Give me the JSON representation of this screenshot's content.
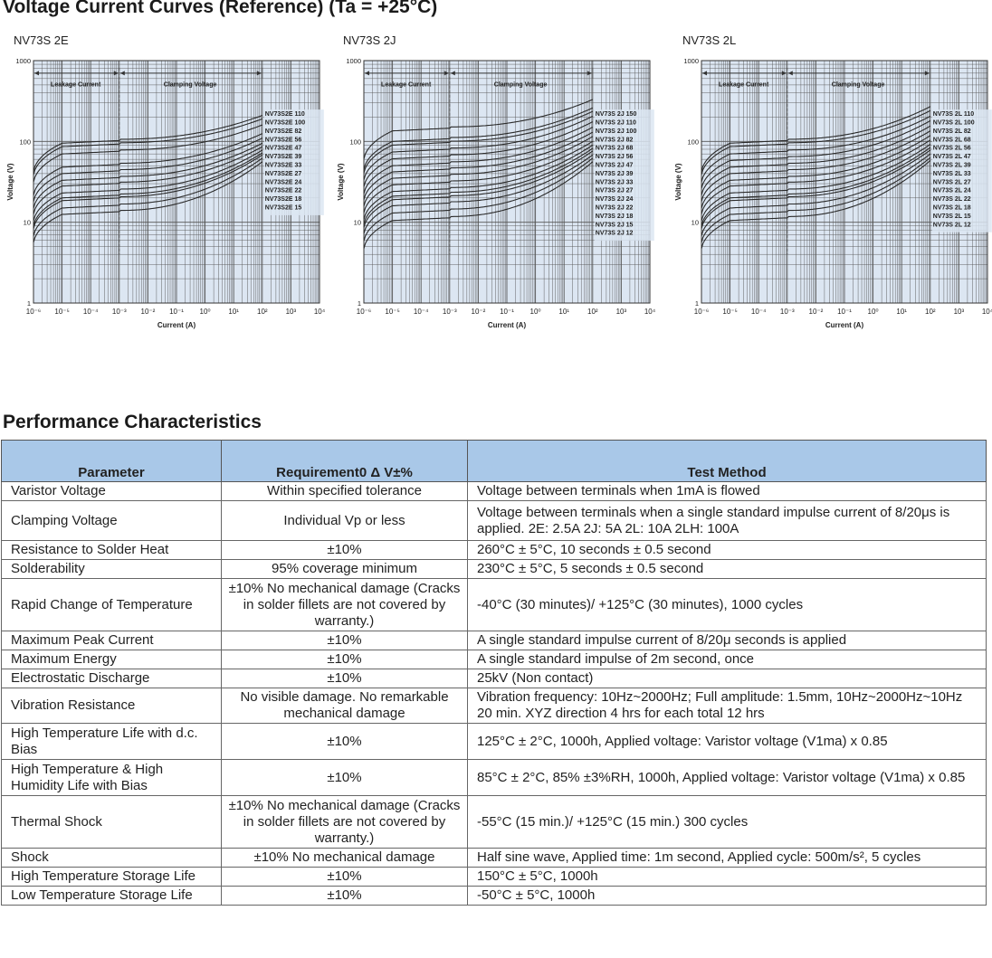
{
  "section1_title": "Voltage Current Curves (Reference) (Ta = +25°C)",
  "section2_title": "Performance Characteristics",
  "colors": {
    "plot_bg": "#dce6f2",
    "header_bg": "#a9c8e8",
    "curve": "#2a2a2a",
    "grid": "#555555"
  },
  "chart_data": [
    {
      "type": "line",
      "title": "NV73S 2E",
      "xlabel": "Current (A)",
      "ylabel": "Voltage (V)",
      "xscale": "log",
      "yscale": "log",
      "xlim": [
        1e-06,
        10000
      ],
      "ylim": [
        1,
        1000
      ],
      "x_ticks": [
        "10⁻⁶",
        "10⁻⁵",
        "10⁻⁴",
        "10⁻³",
        "10⁻²",
        "10⁻¹",
        "10⁰",
        "10¹",
        "10²",
        "10³",
        "10⁴"
      ],
      "y_ticks": [
        "1",
        "10",
        "100",
        "1000"
      ],
      "regions": [
        "Leakage Current",
        "Clamping Voltage"
      ],
      "legend_position": "right",
      "series": [
        {
          "name": "NV73S2E 110",
          "plateau": 95,
          "clamp": 210
        },
        {
          "name": "NV73S2E 100",
          "plateau": 86,
          "clamp": 190
        },
        {
          "name": "NV73S2E 82",
          "plateau": 70,
          "clamp": 160
        },
        {
          "name": "NV73S2E 56",
          "plateau": 48,
          "clamp": 125
        },
        {
          "name": "NV73S2E 47",
          "plateau": 40,
          "clamp": 110
        },
        {
          "name": "NV73S2E 39",
          "plateau": 33,
          "clamp": 95
        },
        {
          "name": "NV73S2E 33",
          "plateau": 28,
          "clamp": 86
        },
        {
          "name": "NV73S2E 27",
          "plateau": 23,
          "clamp": 78
        },
        {
          "name": "NV73S2E 24",
          "plateau": 20,
          "clamp": 72
        },
        {
          "name": "NV73S2E 22",
          "plateau": 18.5,
          "clamp": 68
        },
        {
          "name": "NV73S2E 18",
          "plateau": 15,
          "clamp": 62
        },
        {
          "name": "NV73S2E 15",
          "plateau": 12.5,
          "clamp": 56
        }
      ]
    },
    {
      "type": "line",
      "title": "NV73S 2J",
      "xlabel": "Current (A)",
      "ylabel": "Voltage (V)",
      "xscale": "log",
      "yscale": "log",
      "xlim": [
        1e-06,
        10000
      ],
      "ylim": [
        1,
        1000
      ],
      "x_ticks": [
        "10⁻⁶",
        "10⁻⁵",
        "10⁻⁴",
        "10⁻³",
        "10⁻²",
        "10⁻¹",
        "10⁰",
        "10¹",
        "10²",
        "10³",
        "10⁴"
      ],
      "y_ticks": [
        "1",
        "10",
        "100",
        "1000"
      ],
      "regions": [
        "Leakage Current",
        "Clamping Voltage"
      ],
      "legend_position": "right",
      "series": [
        {
          "name": "NV73S 2J 150",
          "plateau": 135,
          "clamp": 330
        },
        {
          "name": "NV73S 2J 110",
          "plateau": 100,
          "clamp": 260
        },
        {
          "name": "NV73S 2J 100",
          "plateau": 90,
          "clamp": 235
        },
        {
          "name": "NV73S 2J 82",
          "plateau": 74,
          "clamp": 205
        },
        {
          "name": "NV73S 2J 68",
          "plateau": 61,
          "clamp": 175
        },
        {
          "name": "NV73S 2J 56",
          "plateau": 50,
          "clamp": 150
        },
        {
          "name": "NV73S 2J 47",
          "plateau": 42,
          "clamp": 130
        },
        {
          "name": "NV73S 2J 39",
          "plateau": 35,
          "clamp": 115
        },
        {
          "name": "NV73S 2J 33",
          "plateau": 29,
          "clamp": 100
        },
        {
          "name": "NV73S 2J 27",
          "plateau": 24,
          "clamp": 90
        },
        {
          "name": "NV73S 2J 24",
          "plateau": 21,
          "clamp": 82
        },
        {
          "name": "NV73S 2J 22",
          "plateau": 19,
          "clamp": 76
        },
        {
          "name": "NV73S 2J 18",
          "plateau": 16,
          "clamp": 68
        },
        {
          "name": "NV73S 2J 15",
          "plateau": 13,
          "clamp": 62
        },
        {
          "name": "NV73S 2J 12",
          "plateau": 10.5,
          "clamp": 56
        }
      ]
    },
    {
      "type": "line",
      "title": "NV73S 2L",
      "xlabel": "Current (A)",
      "ylabel": "Voltage (V)",
      "xscale": "log",
      "yscale": "log",
      "xlim": [
        1e-06,
        10000
      ],
      "ylim": [
        1,
        1000
      ],
      "x_ticks": [
        "10⁻⁶",
        "10⁻⁵",
        "10⁻⁴",
        "10⁻³",
        "10⁻²",
        "10⁻¹",
        "10⁰",
        "10¹",
        "10²",
        "10³",
        "10⁴"
      ],
      "y_ticks": [
        "1",
        "10",
        "100",
        "1000"
      ],
      "regions": [
        "Leakage Current",
        "Clamping Voltage"
      ],
      "legend_position": "right",
      "series": [
        {
          "name": "NV73S 2L 110",
          "plateau": 95,
          "clamp": 270
        },
        {
          "name": "NV73S 2L 100",
          "plateau": 86,
          "clamp": 240
        },
        {
          "name": "NV73S 2L 82",
          "plateau": 70,
          "clamp": 205
        },
        {
          "name": "NV73S 2L 68",
          "plateau": 58,
          "clamp": 180
        },
        {
          "name": "NV73S 2L 56",
          "plateau": 48,
          "clamp": 155
        },
        {
          "name": "NV73S 2L 47",
          "plateau": 40,
          "clamp": 135
        },
        {
          "name": "NV73S 2L 39",
          "plateau": 33,
          "clamp": 118
        },
        {
          "name": "NV73S 2L 33",
          "plateau": 28,
          "clamp": 104
        },
        {
          "name": "NV73S 2L 27",
          "plateau": 23,
          "clamp": 92
        },
        {
          "name": "NV73S 2L 24",
          "plateau": 20,
          "clamp": 84
        },
        {
          "name": "NV73S 2L 22",
          "plateau": 18.5,
          "clamp": 78
        },
        {
          "name": "NV73S 2L 18",
          "plateau": 15,
          "clamp": 70
        },
        {
          "name": "NV73S 2L 15",
          "plateau": 12.5,
          "clamp": 63
        },
        {
          "name": "NV73S 2L 12",
          "plateau": 10.5,
          "clamp": 58
        }
      ]
    }
  ],
  "table": {
    "headers": [
      "Parameter",
      "Requirement0 Δ V±%",
      "Test Method"
    ],
    "rows": [
      {
        "param": "Varistor Voltage",
        "req": "Within specified tolerance",
        "method": "Voltage between terminals when 1mA is flowed"
      },
      {
        "param": "Clamping Voltage",
        "req": "Individual Vp or less",
        "method": "Voltage between terminals when a single standard impulse current of 8/20μs is applied. 2E: 2.5A    2J: 5A    2L: 10A    2LH: 100A"
      },
      {
        "param": "Resistance to Solder Heat",
        "req": "±10%",
        "method": "260°C ± 5°C, 10 seconds ± 0.5 second"
      },
      {
        "param": "Solderability",
        "req": "95% coverage minimum",
        "method": "230°C ± 5°C, 5 seconds ± 0.5 second"
      },
      {
        "param": "Rapid Change of Temperature",
        "req": "±10% No mechanical damage (Cracks in solder fillets are not covered by warranty.)",
        "method": "-40°C (30 minutes)/ +125°C (30 minutes), 1000 cycles"
      },
      {
        "param": "Maximum Peak Current",
        "req": "±10%",
        "method": "A single standard impulse current of 8/20μ seconds is applied"
      },
      {
        "param": "Maximum Energy",
        "req": "±10%",
        "method": "A single standard impulse of 2m second, once"
      },
      {
        "param": "Electrostatic Discharge",
        "req": "±10%",
        "method": "25kV (Non contact)"
      },
      {
        "param": "Vibration Resistance",
        "req": "No visible damage. No remarkable mechanical damage",
        "method": "Vibration frequency: 10Hz~2000Hz; Full amplitude: 1.5mm, 10Hz~2000Hz~10Hz 20 min. XYZ direction 4 hrs for each total 12 hrs"
      },
      {
        "param": "High Temperature Life with d.c. Bias",
        "req": "±10%",
        "method": "125°C ± 2°C, 1000h, Applied voltage: Varistor voltage (V1ma) x 0.85"
      },
      {
        "param": "High Temperature & High Humidity Life with Bias",
        "req": "±10%",
        "method": "85°C ± 2°C, 85% ±3%RH, 1000h, Applied voltage: Varistor voltage (V1ma) x 0.85"
      },
      {
        "param": "Thermal Shock",
        "req": "±10% No mechanical damage (Cracks in solder fillets are not covered by warranty.)",
        "method": "-55°C (15 min.)/ +125°C (15 min.) 300 cycles"
      },
      {
        "param": "Shock",
        "req": "±10%  No mechanical damage",
        "method": "Half sine wave, Applied time: 1m second, Applied cycle: 500m/s², 5 cycles"
      },
      {
        "param": "High Temperature Storage Life",
        "req": "±10%",
        "method": "150°C ± 5°C, 1000h"
      },
      {
        "param": "Low Temperature Storage Life",
        "req": "±10%",
        "method": "-50°C ± 5°C, 1000h"
      }
    ]
  }
}
